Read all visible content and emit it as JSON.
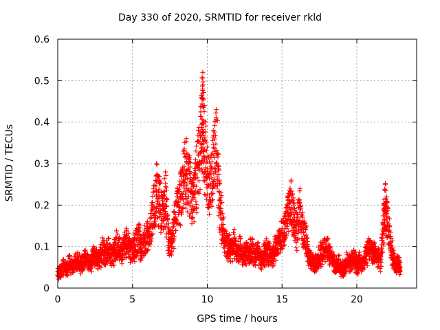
{
  "chart_data": {
    "type": "scatter",
    "title": "Day 330 of 2020, SRMTID for receiver rkld",
    "xlabel": "GPS time / hours",
    "ylabel": "SRMTID / TECUs",
    "xlim": [
      0,
      24
    ],
    "ylim": [
      0,
      0.6
    ],
    "xticks": [
      0,
      5,
      10,
      15,
      20
    ],
    "yticks": [
      0,
      0.1,
      0.2,
      0.3,
      0.4,
      0.5,
      0.6
    ],
    "grid": true,
    "marker": "+",
    "series": [
      {
        "name": "SRMTID",
        "color": "#ff0000",
        "x_range_hours": [
          0.0,
          22.9
        ],
        "note": "dense scatter of several thousand points; values approximated from plot envelope",
        "points": [
          [
            0.0,
            0.04
          ],
          [
            0.2,
            0.05
          ],
          [
            0.4,
            0.06
          ],
          [
            0.6,
            0.05
          ],
          [
            0.8,
            0.07
          ],
          [
            1.0,
            0.06
          ],
          [
            1.2,
            0.08
          ],
          [
            1.4,
            0.07
          ],
          [
            1.6,
            0.06
          ],
          [
            1.8,
            0.09
          ],
          [
            2.0,
            0.08
          ],
          [
            2.2,
            0.07
          ],
          [
            2.4,
            0.1
          ],
          [
            2.6,
            0.09
          ],
          [
            2.8,
            0.08
          ],
          [
            3.0,
            0.11
          ],
          [
            3.2,
            0.1
          ],
          [
            3.4,
            0.12
          ],
          [
            3.6,
            0.09
          ],
          [
            3.8,
            0.11
          ],
          [
            4.0,
            0.13
          ],
          [
            4.2,
            0.1
          ],
          [
            4.4,
            0.12
          ],
          [
            4.6,
            0.14
          ],
          [
            4.8,
            0.12
          ],
          [
            5.0,
            0.11
          ],
          [
            5.2,
            0.13
          ],
          [
            5.4,
            0.15
          ],
          [
            5.6,
            0.12
          ],
          [
            5.8,
            0.14
          ],
          [
            6.0,
            0.16
          ],
          [
            6.2,
            0.18
          ],
          [
            6.4,
            0.24
          ],
          [
            6.6,
            0.3
          ],
          [
            6.8,
            0.26
          ],
          [
            7.0,
            0.22
          ],
          [
            7.2,
            0.28
          ],
          [
            7.4,
            0.14
          ],
          [
            7.6,
            0.13
          ],
          [
            7.8,
            0.2
          ],
          [
            8.0,
            0.24
          ],
          [
            8.2,
            0.28
          ],
          [
            8.4,
            0.33
          ],
          [
            8.6,
            0.36
          ],
          [
            8.8,
            0.31
          ],
          [
            9.0,
            0.26
          ],
          [
            9.2,
            0.3
          ],
          [
            9.4,
            0.38
          ],
          [
            9.6,
            0.46
          ],
          [
            9.7,
            0.52
          ],
          [
            9.8,
            0.44
          ],
          [
            10.0,
            0.34
          ],
          [
            10.2,
            0.3
          ],
          [
            10.4,
            0.38
          ],
          [
            10.6,
            0.43
          ],
          [
            10.8,
            0.26
          ],
          [
            11.0,
            0.18
          ],
          [
            11.2,
            0.14
          ],
          [
            11.4,
            0.12
          ],
          [
            11.6,
            0.11
          ],
          [
            11.8,
            0.13
          ],
          [
            12.0,
            0.1
          ],
          [
            12.2,
            0.12
          ],
          [
            12.4,
            0.09
          ],
          [
            12.6,
            0.11
          ],
          [
            12.8,
            0.1
          ],
          [
            13.0,
            0.12
          ],
          [
            13.2,
            0.09
          ],
          [
            13.4,
            0.11
          ],
          [
            13.6,
            0.08
          ],
          [
            13.8,
            0.1
          ],
          [
            14.0,
            0.11
          ],
          [
            14.2,
            0.09
          ],
          [
            14.4,
            0.1
          ],
          [
            14.6,
            0.12
          ],
          [
            14.8,
            0.14
          ],
          [
            15.0,
            0.16
          ],
          [
            15.2,
            0.18
          ],
          [
            15.4,
            0.22
          ],
          [
            15.6,
            0.26
          ],
          [
            15.8,
            0.2
          ],
          [
            16.0,
            0.17
          ],
          [
            16.2,
            0.24
          ],
          [
            16.4,
            0.16
          ],
          [
            16.6,
            0.15
          ],
          [
            16.8,
            0.09
          ],
          [
            17.0,
            0.08
          ],
          [
            17.2,
            0.07
          ],
          [
            17.4,
            0.08
          ],
          [
            17.6,
            0.1
          ],
          [
            17.8,
            0.11
          ],
          [
            18.0,
            0.12
          ],
          [
            18.2,
            0.1
          ],
          [
            18.4,
            0.08
          ],
          [
            18.6,
            0.06
          ],
          [
            18.8,
            0.07
          ],
          [
            19.0,
            0.05
          ],
          [
            19.2,
            0.06
          ],
          [
            19.4,
            0.08
          ],
          [
            19.6,
            0.07
          ],
          [
            19.8,
            0.09
          ],
          [
            20.0,
            0.06
          ],
          [
            20.2,
            0.08
          ],
          [
            20.4,
            0.07
          ],
          [
            20.6,
            0.09
          ],
          [
            20.8,
            0.12
          ],
          [
            21.0,
            0.11
          ],
          [
            21.2,
            0.1
          ],
          [
            21.4,
            0.09
          ],
          [
            21.6,
            0.08
          ],
          [
            21.8,
            0.2
          ],
          [
            21.9,
            0.25
          ],
          [
            22.0,
            0.22
          ],
          [
            22.2,
            0.15
          ],
          [
            22.4,
            0.09
          ],
          [
            22.6,
            0.06
          ],
          [
            22.8,
            0.07
          ],
          [
            22.9,
            0.05
          ]
        ]
      }
    ]
  }
}
